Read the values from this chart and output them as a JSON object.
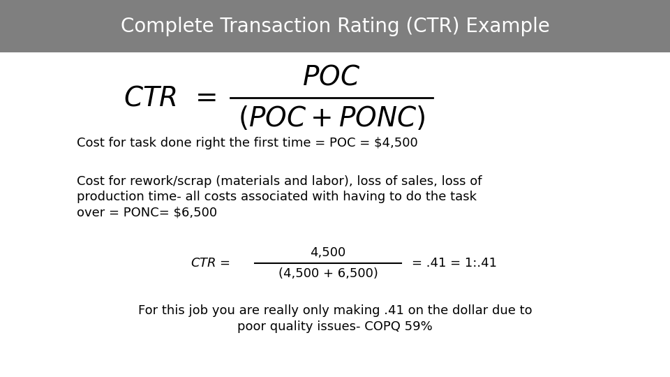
{
  "title": "Complete Transaction Rating (CTR) Example",
  "title_bg_color": "#7F7F7F",
  "title_text_color": "#FFFFFF",
  "bg_color": "#FFFFFF",
  "body_text_color": "#000000",
  "title_fontsize": 20,
  "formula_main_fontsize": 28,
  "body_fontsize": 13,
  "small_formula_fontsize": 13,
  "footer_fontsize": 13,
  "line1": "Cost for task done right the first time = POC = $4,500",
  "line2a": "Cost for rework/scrap (materials and labor), loss of sales, loss of",
  "line2b": "production time- all costs associated with having to do the task",
  "line2c": "over = PONC= $6,500",
  "footer1": "For this job you are really only making .41 on the dollar due to",
  "footer2a": "poor quality issues- ",
  "footer2b": "COPQ 59%"
}
